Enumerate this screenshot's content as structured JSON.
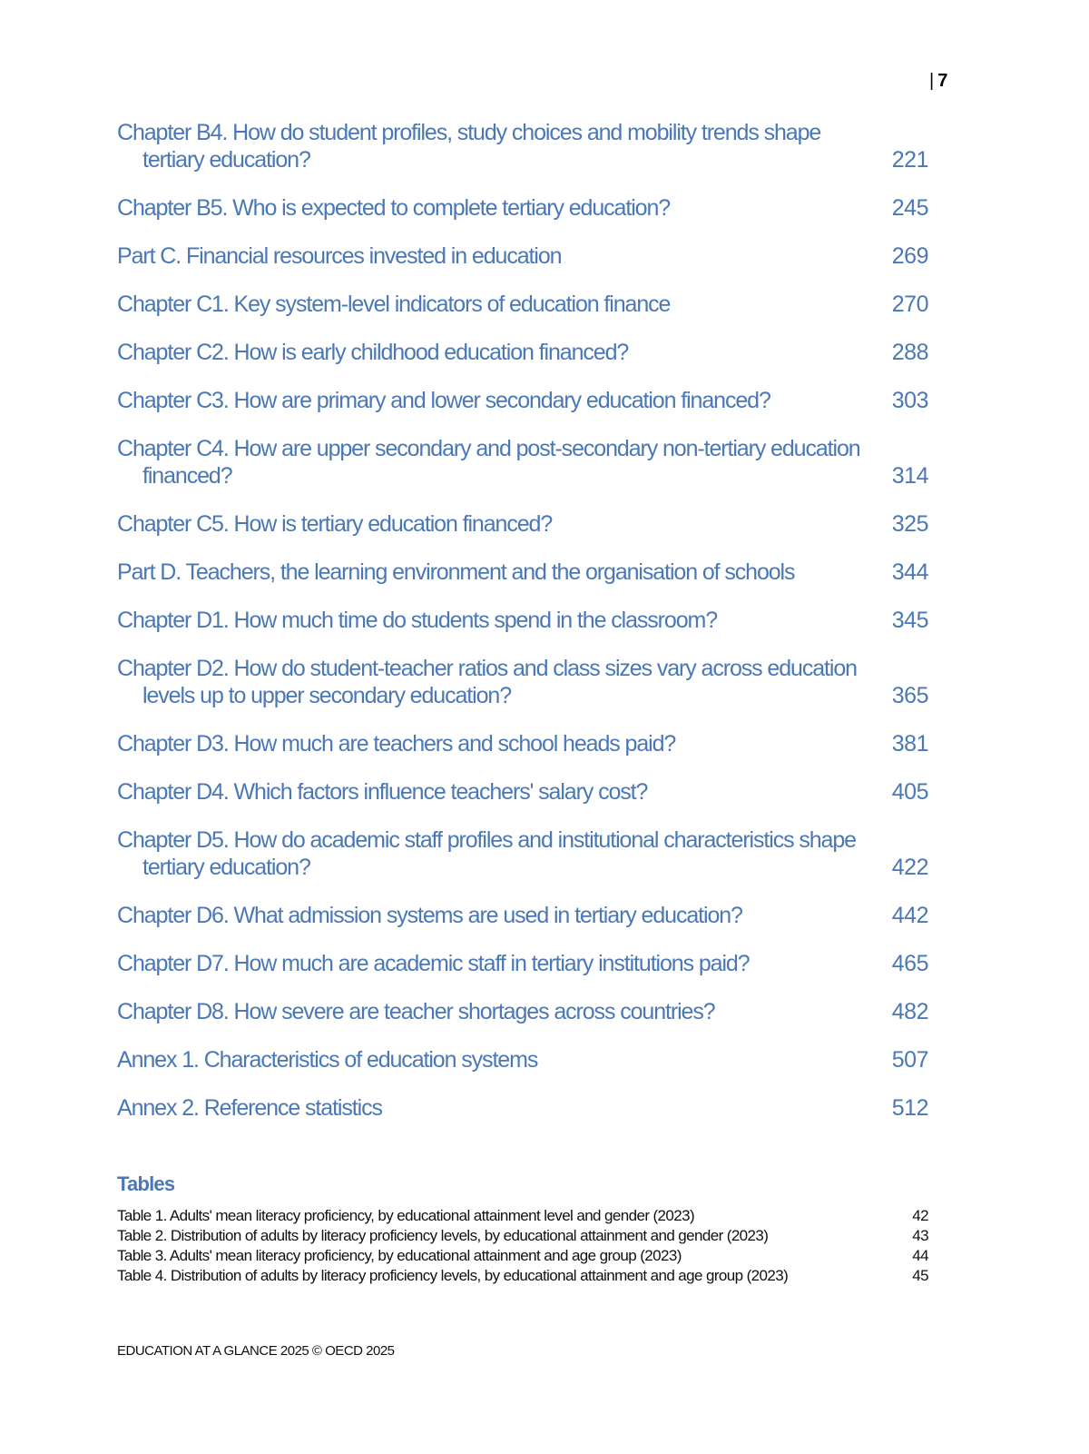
{
  "page_number": "7",
  "toc": [
    {
      "lines": [
        "Chapter B4. How do student profiles, study choices and mobility trends shape",
        "tertiary education?"
      ],
      "page": "221"
    },
    {
      "lines": [
        "Chapter B5. Who is expected to complete tertiary education?"
      ],
      "page": "245"
    },
    {
      "lines": [
        "Part C. Financial resources invested in education"
      ],
      "page": "269"
    },
    {
      "lines": [
        "Chapter C1. Key system-level indicators of education finance"
      ],
      "page": "270"
    },
    {
      "lines": [
        "Chapter C2. How is early childhood education financed?"
      ],
      "page": "288"
    },
    {
      "lines": [
        "Chapter C3. How are primary and lower secondary education financed?"
      ],
      "page": "303"
    },
    {
      "lines": [
        "Chapter C4. How are upper secondary and post-secondary non-tertiary education",
        "financed?"
      ],
      "page": "314"
    },
    {
      "lines": [
        "Chapter C5. How is tertiary education financed?"
      ],
      "page": "325"
    },
    {
      "lines": [
        "Part D. Teachers, the learning environment and the organisation of schools"
      ],
      "page": "344"
    },
    {
      "lines": [
        "Chapter D1. How much time do students spend in the classroom?"
      ],
      "page": "345"
    },
    {
      "lines": [
        "Chapter D2. How do student-teacher ratios and class sizes vary across education",
        "levels up to upper secondary education?"
      ],
      "page": "365"
    },
    {
      "lines": [
        "Chapter D3. How much are teachers and school heads paid?"
      ],
      "page": "381"
    },
    {
      "lines": [
        "Chapter D4. Which factors influence teachers' salary cost?"
      ],
      "page": "405"
    },
    {
      "lines": [
        "Chapter D5. How do academic staff profiles and institutional characteristics shape",
        "tertiary education?"
      ],
      "page": "422"
    },
    {
      "lines": [
        "Chapter D6. What admission systems are used in tertiary education?"
      ],
      "page": "442"
    },
    {
      "lines": [
        "Chapter D7. How much are academic staff in tertiary institutions paid?"
      ],
      "page": "465"
    },
    {
      "lines": [
        "Chapter D8. How severe are teacher shortages across countries?"
      ],
      "page": "482"
    },
    {
      "lines": [
        "Annex 1. Characteristics of education systems"
      ],
      "page": "507"
    },
    {
      "lines": [
        "Annex 2. Reference statistics"
      ],
      "page": "512"
    }
  ],
  "tables_heading": "Tables",
  "tables": [
    {
      "title": "Table 1. Adults' mean literacy proficiency, by educational attainment level and gender (2023)",
      "page": "42"
    },
    {
      "title": "Table 2. Distribution of adults by literacy proficiency levels, by educational attainment and gender (2023)",
      "page": "43"
    },
    {
      "title": "Table 3. Adults' mean literacy proficiency, by educational attainment and age group (2023)",
      "page": "44"
    },
    {
      "title": "Table 4. Distribution of adults by literacy proficiency levels, by educational attainment and age group (2023)",
      "page": "45"
    }
  ],
  "footer": "EDUCATION AT A GLANCE 2025 © OECD 2025",
  "colors": {
    "link": "#4a78b6",
    "text": "#111111"
  }
}
